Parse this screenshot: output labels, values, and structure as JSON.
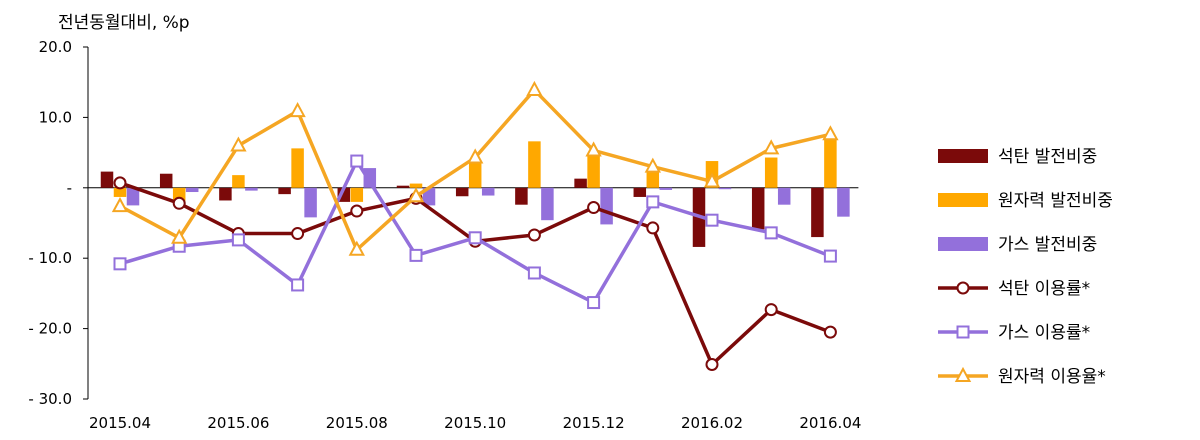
{
  "chart_data": {
    "type": "bar+line",
    "ylabel": "전년동월대비, %p",
    "ylim": [
      -30,
      20
    ],
    "yticks": [
      20,
      10,
      0,
      -10,
      -20,
      -30
    ],
    "ytick_labels": [
      "20.0",
      "10.0",
      "-",
      "- 10.0",
      "- 20.0",
      "- 30.0"
    ],
    "x": [
      "2015.04",
      "2015.05",
      "2015.06",
      "2015.07",
      "2015.08",
      "2015.09",
      "2015.10",
      "2015.11",
      "2015.12",
      "2016.01",
      "2016.02",
      "2016.03",
      "2016.04"
    ],
    "xtick_labels": [
      "2015.04",
      "2015.06",
      "2015.08",
      "2015.10",
      "2015.12",
      "2016.02",
      "2016.04"
    ],
    "bar_series": [
      {
        "name": "석탄 발전비중",
        "color": "#7b0a0a",
        "values": [
          2.3,
          2.0,
          -1.8,
          -0.9,
          -2.0,
          0.3,
          -1.2,
          -2.4,
          1.3,
          -1.3,
          -8.4,
          -5.9,
          -7.0
        ]
      },
      {
        "name": "원자력 발전비중",
        "color": "#ffa800",
        "values": [
          -1.3,
          -1.9,
          1.8,
          5.6,
          -2.0,
          0.6,
          3.8,
          6.6,
          4.5,
          2.5,
          3.8,
          4.3,
          6.9
        ]
      },
      {
        "name": "가스 발전비중",
        "color": "#9370db",
        "values": [
          -2.5,
          -0.6,
          -0.4,
          -4.2,
          2.8,
          -2.5,
          -1.1,
          -4.6,
          -5.2,
          -0.3,
          -0.2,
          -2.4,
          -4.1
        ]
      }
    ],
    "line_series": [
      {
        "name": "석탄 이용률*",
        "color": "#7b0a0a",
        "marker": "circle",
        "values": [
          0.7,
          -2.2,
          -6.5,
          -6.5,
          -3.3,
          -1.5,
          -7.6,
          -6.7,
          -2.8,
          -5.7,
          -25.1,
          -17.3,
          -20.5
        ]
      },
      {
        "name": "가스 이용률*",
        "color": "#9370db",
        "marker": "square",
        "values": [
          -10.8,
          -8.3,
          -7.4,
          -13.8,
          3.8,
          -9.6,
          -7.1,
          -12.1,
          -16.3,
          -2.0,
          -4.6,
          -6.4,
          -9.7
        ]
      },
      {
        "name": "원자력 이용율*",
        "color": "#f5a623",
        "marker": "triangle",
        "values": [
          -2.6,
          -7.1,
          6.0,
          10.9,
          -8.8,
          -1.2,
          4.3,
          13.9,
          5.3,
          3.0,
          0.9,
          5.6,
          7.6
        ]
      }
    ],
    "legend_position": "right"
  }
}
